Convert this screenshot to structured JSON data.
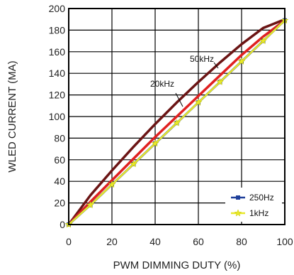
{
  "chart_data": {
    "type": "line",
    "xlabel": "PWM DIMMING DUTY (%)",
    "ylabel": "WLED CURRENT (MA)",
    "xlim": [
      0,
      100
    ],
    "ylim": [
      0,
      200
    ],
    "xticks": [
      "0",
      "20",
      "40",
      "60",
      "80",
      "100"
    ],
    "yticks": [
      "0",
      "20",
      "40",
      "60",
      "80",
      "100",
      "120",
      "140",
      "160",
      "180",
      "200"
    ],
    "grid": true,
    "legend_position": "bottom-right",
    "series": [
      {
        "name": "250Hz",
        "color": "#1f3f9a",
        "marker": "square",
        "x": [
          0,
          10,
          20,
          30,
          40,
          50,
          60,
          70,
          80,
          90,
          100
        ],
        "y": [
          0,
          18,
          37,
          56,
          75,
          94,
          113,
          132,
          151,
          170,
          189
        ]
      },
      {
        "name": "1kHz",
        "color": "#e8e82a",
        "marker": "star",
        "x": [
          0,
          10,
          20,
          30,
          40,
          50,
          60,
          70,
          80,
          90,
          100
        ],
        "y": [
          0,
          18,
          37,
          56,
          75,
          94,
          113,
          132,
          151,
          170,
          189
        ]
      },
      {
        "name": "20kHz",
        "color": "#e02020",
        "marker": "none",
        "x": [
          0,
          10,
          20,
          30,
          40,
          50,
          60,
          70,
          80,
          90,
          100
        ],
        "y": [
          0,
          21,
          41,
          61,
          81,
          100,
          119,
          138,
          157,
          174,
          189
        ]
      },
      {
        "name": "50kHz",
        "color": "#6b1414",
        "marker": "none",
        "x": [
          0,
          10,
          20,
          30,
          40,
          50,
          60,
          70,
          80,
          90,
          100
        ],
        "y": [
          0,
          27,
          50,
          72,
          93,
          113,
          132,
          150,
          167,
          182,
          190
        ]
      }
    ],
    "annotations": [
      {
        "text": "50kHz",
        "x": 72,
        "y": 153
      },
      {
        "text": "20kHz",
        "x": 52,
        "y": 123
      }
    ]
  }
}
